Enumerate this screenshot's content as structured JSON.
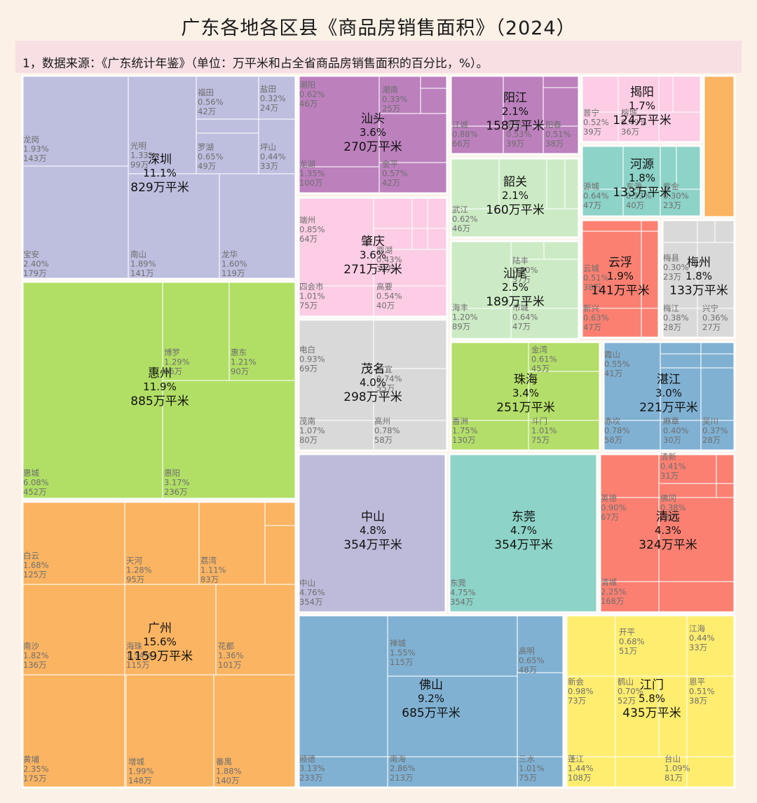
{
  "title": "广东各地各区县《商品房销售面积》（2024）",
  "source_note": "1，数据来源：《广东统计年鉴》（单位：万平米和占全省商品房销售面积的百分比，%）。",
  "chart_data": {
    "type": "treemap",
    "unit": "万平米",
    "regions": [
      {
        "name": "深圳",
        "pct": "11.1%",
        "value": 829,
        "label": "829万平米",
        "color": "#bebedf",
        "districts": [
          {
            "name": "龙岗",
            "pct": "1.93%",
            "value": "143万"
          },
          {
            "name": "光明",
            "pct": "1.33%",
            "value": "99万"
          },
          {
            "name": "福田",
            "pct": "0.56%",
            "value": "42万"
          },
          {
            "name": "盐田",
            "pct": "0.32%",
            "value": "24万"
          },
          {
            "name": "罗湖",
            "pct": "0.65%",
            "value": "49万"
          },
          {
            "name": "坪山",
            "pct": "0.44%",
            "value": "33万"
          },
          {
            "name": "宝安",
            "pct": "2.40%",
            "value": "179万"
          },
          {
            "name": "南山",
            "pct": "1.89%",
            "value": "141万"
          },
          {
            "name": "龙华",
            "pct": "1.60%",
            "value": "119万"
          }
        ]
      },
      {
        "name": "惠州",
        "pct": "11.9%",
        "value": 885,
        "label": "885万平米",
        "color": "#b1df66",
        "districts": [
          {
            "name": "博罗",
            "pct": "1.29%",
            "value": "96万"
          },
          {
            "name": "惠东",
            "pct": "1.21%",
            "value": "90万"
          },
          {
            "name": "惠城",
            "pct": "6.08%",
            "value": "452万"
          },
          {
            "name": "惠阳",
            "pct": "3.17%",
            "value": "236万"
          }
        ]
      },
      {
        "name": "广州",
        "pct": "15.6%",
        "value": 1159,
        "label": "1159万平米",
        "color": "#fbb462",
        "districts": [
          {
            "name": "白云",
            "pct": "1.68%",
            "value": "125万"
          },
          {
            "name": "天河",
            "pct": "1.28%",
            "value": "95万"
          },
          {
            "name": "荔湾",
            "pct": "1.11%",
            "value": "83万"
          },
          {
            "name": "南沙",
            "pct": "1.82%",
            "value": "136万"
          },
          {
            "name": "海珠",
            "pct": "1.54%",
            "value": "115万"
          },
          {
            "name": "花都",
            "pct": "1.36%",
            "value": "101万"
          },
          {
            "name": "黄埔",
            "pct": "2.35%",
            "value": "175万"
          },
          {
            "name": "增城",
            "pct": "1.99%",
            "value": "148万"
          },
          {
            "name": "番禺",
            "pct": "1.88%",
            "value": "140万"
          }
        ]
      },
      {
        "name": "汕头",
        "pct": "3.6%",
        "value": 270,
        "label": "270万平米",
        "color": "#bc80bd",
        "districts": [
          {
            "name": "潮阳",
            "pct": "0.62%",
            "value": "46万"
          },
          {
            "name": "潮南",
            "pct": "0.33%",
            "value": "25万"
          },
          {
            "name": "龙湖",
            "pct": "1.35%",
            "value": "100万"
          },
          {
            "name": "金平",
            "pct": "0.57%",
            "value": "42万"
          }
        ]
      },
      {
        "name": "阳江",
        "pct": "2.1%",
        "value": 158,
        "label": "158万平米",
        "color": "#bc80bd",
        "districts": [
          {
            "name": "江城",
            "pct": "0.88%",
            "value": "66万"
          },
          {
            "name": "阳东",
            "pct": "0.53%",
            "value": "39万"
          },
          {
            "name": "阳春",
            "pct": "0.51%",
            "value": "38万"
          }
        ]
      },
      {
        "name": "揭阳",
        "pct": "1.7%",
        "value": 124,
        "label": "124万平米",
        "color": "#fccde5",
        "districts": [
          {
            "name": "普宁",
            "pct": "0.52%",
            "value": "39万"
          },
          {
            "name": "榕城",
            "pct": "0.49%",
            "value": "36万"
          }
        ]
      },
      {
        "name": "肇庆",
        "pct": "3.6%",
        "value": 271,
        "label": "271万平米",
        "color": "#fccde5",
        "districts": [
          {
            "name": "端州",
            "pct": "0.85%",
            "value": "64万"
          },
          {
            "name": "四会市",
            "pct": "1.01%",
            "value": "75万"
          },
          {
            "name": "高要",
            "pct": "0.54%",
            "value": "40万"
          },
          {
            "name": "鼎湖",
            "pct": "0.43%",
            "value": "32万"
          }
        ]
      },
      {
        "name": "韶关",
        "pct": "2.1%",
        "value": 160,
        "label": "160万平米",
        "color": "#ccebc5",
        "districts": [
          {
            "name": "武江",
            "pct": "0.62%",
            "value": "46万"
          }
        ]
      },
      {
        "name": "河源",
        "pct": "1.8%",
        "value": 133,
        "label": "133万平米",
        "color": "#8dd3c7",
        "districts": [
          {
            "name": "源城",
            "pct": "0.64%",
            "value": "47万"
          },
          {
            "name": "东源",
            "pct": "0.53%",
            "value": "40万"
          },
          {
            "name": "紫金",
            "pct": "0.30%",
            "value": "23万"
          }
        ]
      },
      {
        "name": "汕尾",
        "pct": "2.5%",
        "value": 189,
        "label": "189万平米",
        "color": "#ccebc5",
        "districts": [
          {
            "name": "陆丰",
            "pct": "0.50%",
            "value": "37万"
          },
          {
            "name": "海丰",
            "pct": "1.20%",
            "value": "89万"
          },
          {
            "name": "市城",
            "pct": "0.64%",
            "value": "47万"
          }
        ]
      },
      {
        "name": "云浮",
        "pct": "1.9%",
        "value": 141,
        "label": "141万平米",
        "color": "#fb8072",
        "districts": [
          {
            "name": "云城",
            "pct": "0.51%",
            "value": "38万"
          },
          {
            "name": "新兴",
            "pct": "0.63%",
            "value": "47万"
          }
        ]
      },
      {
        "name": "梅州",
        "pct": "1.8%",
        "value": 133,
        "label": "133万平米",
        "color": "#d9d9d9",
        "districts": [
          {
            "name": "梅县",
            "pct": "0.30%",
            "value": "23万"
          },
          {
            "name": "梅江",
            "pct": "0.38%",
            "value": "28万"
          },
          {
            "name": "兴宁",
            "pct": "0.36%",
            "value": "27万"
          }
        ]
      },
      {
        "name": "茂名",
        "pct": "4.0%",
        "value": 298,
        "label": "298万平米",
        "color": "#d9d9d9",
        "districts": [
          {
            "name": "电白",
            "pct": "0.93%",
            "value": "69万"
          },
          {
            "name": "信宜",
            "pct": "0.74%",
            "value": "55万"
          },
          {
            "name": "茂南",
            "pct": "1.07%",
            "value": "80万"
          },
          {
            "name": "高州",
            "pct": "0.78%",
            "value": "58万"
          }
        ]
      },
      {
        "name": "珠海",
        "pct": "3.4%",
        "value": 251,
        "label": "251万平米",
        "color": "#b3de69",
        "districts": [
          {
            "name": "金湾",
            "pct": "0.61%",
            "value": "45万"
          },
          {
            "name": "香洲",
            "pct": "1.75%",
            "value": "130万"
          },
          {
            "name": "斗门",
            "pct": "1.01%",
            "value": "75万"
          }
        ]
      },
      {
        "name": "湛江",
        "pct": "3.0%",
        "value": 221,
        "label": "221万平米",
        "color": "#80b1d3",
        "districts": [
          {
            "name": "霞山",
            "pct": "0.55%",
            "value": "41万"
          },
          {
            "name": "赤坎",
            "pct": "0.78%",
            "value": "58万"
          },
          {
            "name": "麻章",
            "pct": "0.40%",
            "value": "30万"
          },
          {
            "name": "吴川",
            "pct": "0.37%",
            "value": "28万"
          }
        ]
      },
      {
        "name": "中山",
        "pct": "4.8%",
        "value": 354,
        "label": "354万平米",
        "color": "#bebada",
        "districts": [
          {
            "name": "中山",
            "pct": "4.76%",
            "value": "354万"
          }
        ]
      },
      {
        "name": "东莞",
        "pct": "4.7%",
        "value": 354,
        "label": "354万平米",
        "color": "#8dd3c7",
        "districts": [
          {
            "name": "东莞",
            "pct": "4.75%",
            "value": "354万"
          }
        ]
      },
      {
        "name": "清远",
        "pct": "4.3%",
        "value": 324,
        "label": "324万平米",
        "color": "#fb8072",
        "districts": [
          {
            "name": "清新",
            "pct": "0.41%",
            "value": "31万"
          },
          {
            "name": "英德",
            "pct": "0.90%",
            "value": "67万"
          },
          {
            "name": "佛冈",
            "pct": "0.38%",
            "value": "28万"
          },
          {
            "name": "清城",
            "pct": "2.25%",
            "value": "168万"
          }
        ]
      },
      {
        "name": "佛山",
        "pct": "9.2%",
        "value": 685,
        "label": "685万平米",
        "color": "#80b1d3",
        "districts": [
          {
            "name": "禅城",
            "pct": "1.55%",
            "value": "115万"
          },
          {
            "name": "高明",
            "pct": "0.65%",
            "value": "48万"
          },
          {
            "name": "顺德",
            "pct": "3.13%",
            "value": "233万"
          },
          {
            "name": "南海",
            "pct": "2.86%",
            "value": "213万"
          },
          {
            "name": "三水",
            "pct": "1.01%",
            "value": "75万"
          }
        ]
      },
      {
        "name": "江门",
        "pct": "5.8%",
        "value": 435,
        "label": "435万平米",
        "color": "#ffed6f",
        "districts": [
          {
            "name": "开平",
            "pct": "0.68%",
            "value": "51万"
          },
          {
            "name": "江海",
            "pct": "0.44%",
            "value": "33万"
          },
          {
            "name": "新会",
            "pct": "0.98%",
            "value": "73万"
          },
          {
            "name": "鹤山",
            "pct": "0.70%",
            "value": "52万"
          },
          {
            "name": "恩平",
            "pct": "0.51%",
            "value": "38万"
          },
          {
            "name": "蓬江",
            "pct": "1.44%",
            "value": "108万"
          },
          {
            "name": "台山",
            "pct": "1.09%",
            "value": "81万"
          }
        ]
      }
    ]
  }
}
